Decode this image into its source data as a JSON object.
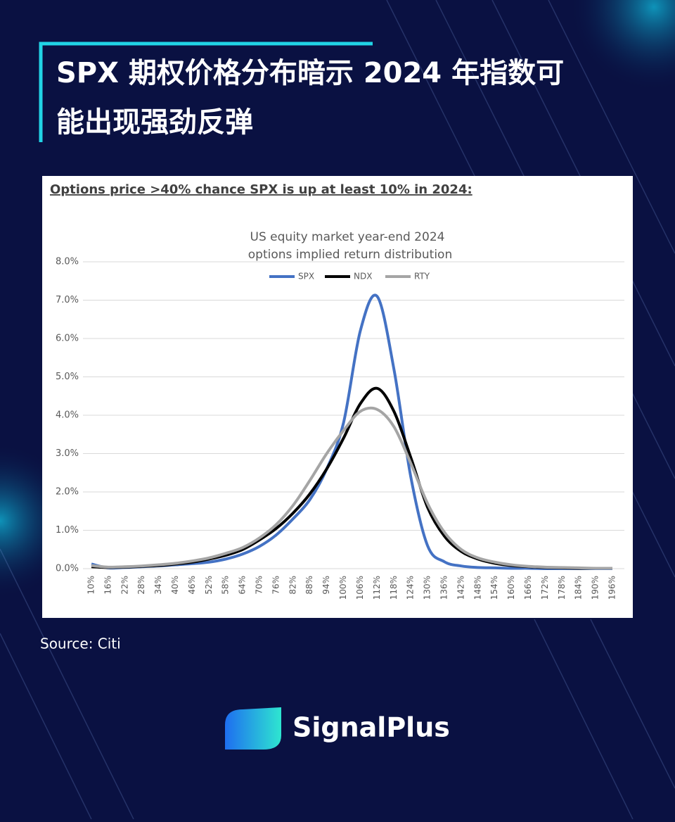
{
  "header": {
    "title": "SPX 期权价格分布暗示 2024 年指数可能出现强劲反弹"
  },
  "chart_data": {
    "type": "line",
    "subtitle": "Options price >40% chance SPX is up at least 10% in 2024:",
    "title": [
      "US equity market year-end 2024",
      "options implied return distribution"
    ],
    "categories": [
      "10%",
      "16%",
      "22%",
      "28%",
      "34%",
      "40%",
      "46%",
      "52%",
      "58%",
      "64%",
      "70%",
      "76%",
      "82%",
      "88%",
      "94%",
      "100%",
      "106%",
      "112%",
      "118%",
      "124%",
      "130%",
      "136%",
      "142%",
      "148%",
      "154%",
      "160%",
      "166%",
      "172%",
      "178%",
      "184%",
      "190%",
      "196%"
    ],
    "series": [
      {
        "name": "SPX",
        "color": "#4472c4",
        "values": [
          0.12,
          0.02,
          0.03,
          0.05,
          0.07,
          0.1,
          0.13,
          0.17,
          0.25,
          0.38,
          0.58,
          0.88,
          1.3,
          1.8,
          2.6,
          3.8,
          6.2,
          7.1,
          5.2,
          2.4,
          0.6,
          0.18,
          0.07,
          0.03,
          0.02,
          0.01,
          0.01,
          0,
          0,
          0,
          0,
          0
        ]
      },
      {
        "name": "NDX",
        "color": "#000000",
        "values": [
          0.05,
          0.03,
          0.04,
          0.06,
          0.08,
          0.12,
          0.17,
          0.25,
          0.35,
          0.5,
          0.75,
          1.05,
          1.45,
          1.95,
          2.6,
          3.4,
          4.3,
          4.7,
          4.1,
          2.9,
          1.6,
          0.85,
          0.45,
          0.25,
          0.14,
          0.08,
          0.05,
          0.03,
          0.02,
          0.01,
          0.01,
          0.01
        ]
      },
      {
        "name": "RTY",
        "color": "#a5a5a5",
        "values": [
          0.08,
          0.04,
          0.05,
          0.07,
          0.1,
          0.14,
          0.2,
          0.28,
          0.4,
          0.55,
          0.8,
          1.15,
          1.65,
          2.3,
          3.0,
          3.6,
          4.1,
          4.15,
          3.7,
          2.75,
          1.7,
          0.95,
          0.5,
          0.28,
          0.17,
          0.1,
          0.06,
          0.04,
          0.03,
          0.02,
          0.01,
          0.01
        ]
      }
    ],
    "ylim": [
      0,
      8
    ],
    "yticks": [
      {
        "value": 0,
        "label": "0.0%"
      },
      {
        "value": 1,
        "label": "1.0%"
      },
      {
        "value": 2,
        "label": "2.0%"
      },
      {
        "value": 3,
        "label": "3.0%"
      },
      {
        "value": 4,
        "label": "4.0%"
      },
      {
        "value": 5,
        "label": "5.0%"
      },
      {
        "value": 6,
        "label": "6.0%"
      },
      {
        "value": 7,
        "label": "7.0%"
      },
      {
        "value": 8,
        "label": "8.0%"
      }
    ],
    "grid": true,
    "legend": "top"
  },
  "source": "Source: Citi",
  "brand": "SignalPlus"
}
